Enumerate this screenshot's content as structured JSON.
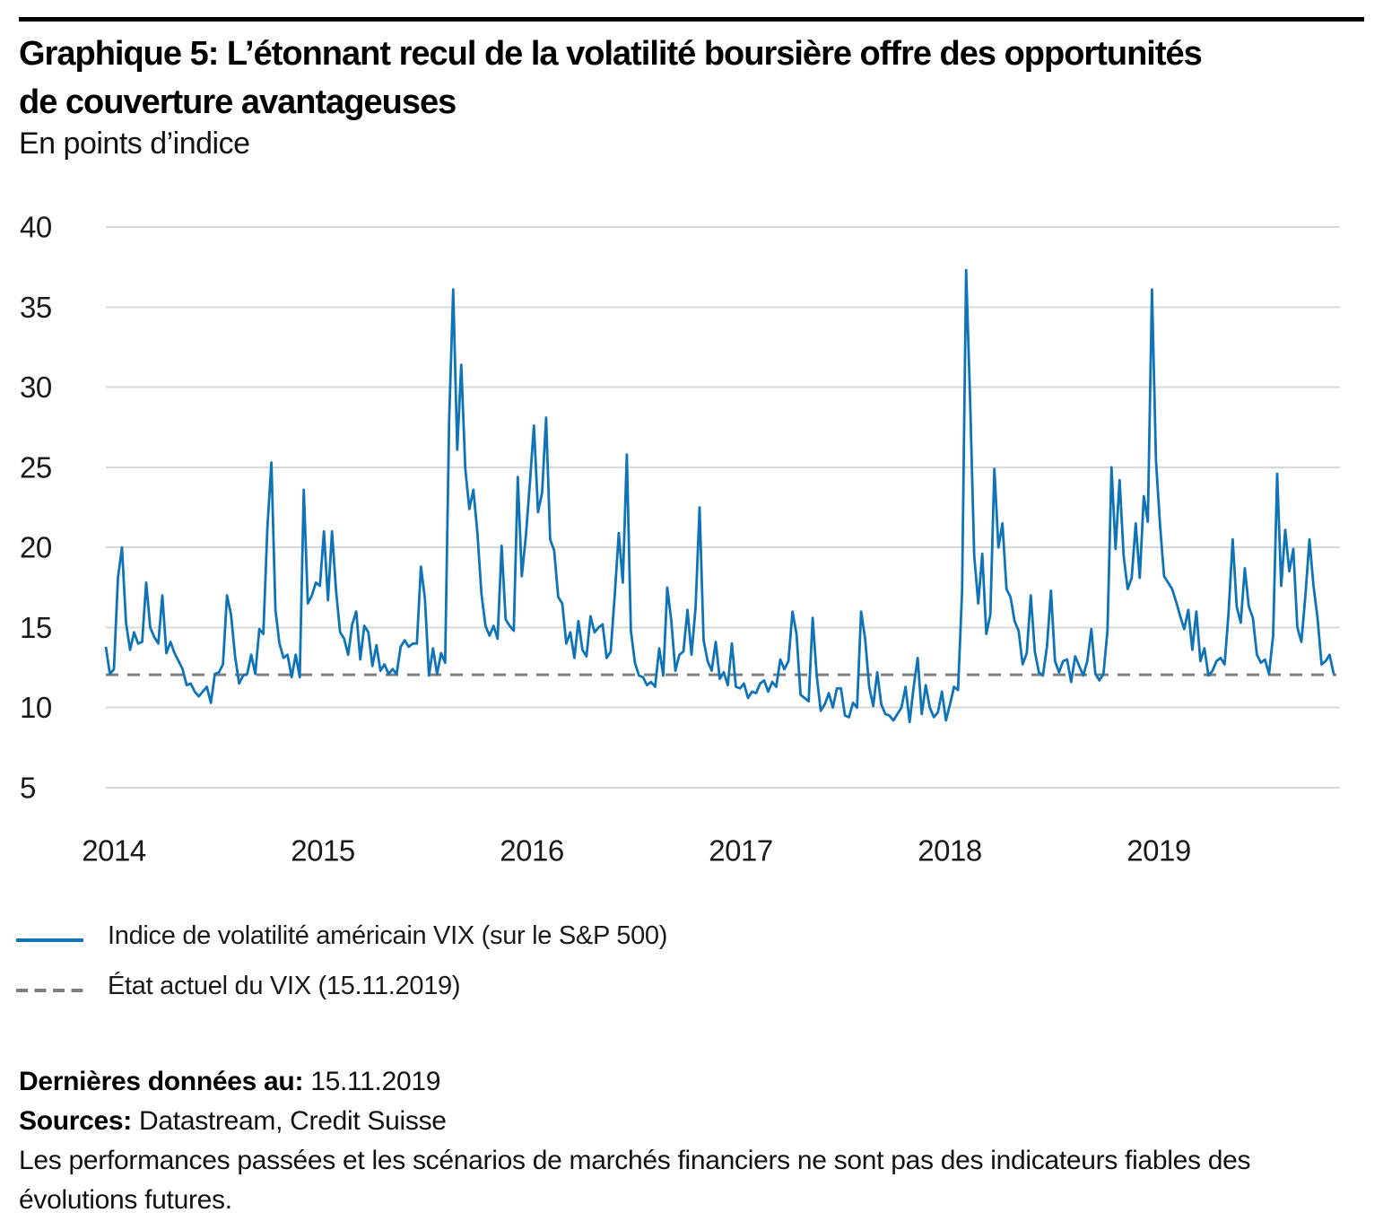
{
  "header": {
    "title": "Graphique 5: L’étonnant recul de la volatilité boursière offre des opportunités de couverture avantageuses",
    "title_line1": "Graphique 5: L’étonnant recul de la volatilité boursière offre des opportunités",
    "title_line2": "de couverture avantageuses",
    "subtitle": "En points d’indice"
  },
  "colors": {
    "accent_blue": "#0f73b8",
    "dash_gray": "#7f7f7f",
    "gridline": "#d8d8d8",
    "axis_text": "#1a1a1a",
    "rule_black": "#000000"
  },
  "chart_data": {
    "type": "line",
    "title": "Graphique 5: L’étonnant recul de la volatilité boursière offre des opportunités de couverture avantageuses",
    "ylabel": "En points d’indice",
    "xlabel": "",
    "ylim": [
      5,
      40
    ],
    "yticks": [
      5,
      10,
      15,
      20,
      25,
      30,
      35,
      40
    ],
    "xticks": [
      "2014",
      "2015",
      "2016",
      "2017",
      "2018",
      "2019"
    ],
    "x_range": [
      "janv. 2014",
      "15.11.2019"
    ],
    "sampling": "approx. weekly VIX closing values, evenly spaced",
    "grid": "horizontal only",
    "legend_position": "below-left",
    "series": [
      {
        "name": "Indice de volatilité américain VIX (sur le S&P 500)",
        "style": "solid",
        "color": "#0f73b8",
        "values": [
          13.8,
          12.1,
          12.4,
          18.1,
          20.0,
          15.3,
          13.6,
          14.7,
          14.0,
          14.1,
          17.8,
          15.0,
          14.4,
          14.0,
          17.0,
          13.4,
          14.1,
          13.4,
          12.9,
          12.4,
          11.4,
          11.5,
          11.0,
          10.7,
          11.0,
          11.3,
          10.3,
          12.1,
          12.2,
          12.7,
          17.0,
          15.8,
          13.2,
          11.5,
          12.0,
          12.1,
          13.3,
          12.1,
          14.9,
          14.6,
          21.2,
          25.3,
          16.1,
          14.0,
          13.1,
          13.3,
          11.9,
          13.3,
          11.9,
          23.6,
          16.5,
          17.0,
          17.8,
          17.6,
          21.0,
          16.7,
          21.0,
          17.3,
          14.7,
          14.3,
          13.3,
          15.2,
          16.0,
          13.0,
          15.1,
          14.7,
          12.6,
          13.9,
          12.3,
          12.7,
          12.1,
          12.4,
          12.1,
          13.8,
          14.2,
          13.8,
          14.0,
          14.0,
          18.8,
          16.8,
          12.0,
          13.7,
          12.1,
          13.4,
          12.8,
          28.0,
          36.1,
          26.1,
          31.4,
          24.9,
          22.4,
          23.6,
          20.9,
          17.1,
          15.1,
          14.5,
          15.1,
          14.3,
          20.1,
          15.5,
          15.1,
          14.8,
          24.4,
          18.2,
          20.7,
          24.0,
          27.6,
          22.2,
          23.4,
          28.1,
          20.5,
          19.8,
          16.9,
          16.5,
          14.0,
          14.7,
          13.1,
          15.4,
          13.6,
          13.2,
          15.7,
          14.7,
          15.0,
          15.2,
          13.1,
          13.5,
          17.0,
          20.9,
          17.8,
          25.8,
          14.8,
          12.8,
          12.0,
          11.9,
          11.4,
          11.6,
          11.3,
          13.7,
          12.0,
          17.5,
          15.4,
          12.3,
          13.3,
          13.5,
          16.1,
          13.3,
          16.2,
          22.5,
          14.2,
          12.9,
          12.3,
          14.1,
          11.8,
          12.2,
          11.4,
          14.0,
          11.3,
          11.2,
          11.5,
          10.6,
          11.0,
          10.9,
          11.5,
          11.7,
          11.0,
          11.6,
          11.3,
          13.0,
          12.4,
          12.9,
          16.0,
          14.6,
          10.8,
          10.6,
          10.4,
          15.6,
          12.0,
          9.8,
          10.2,
          10.9,
          10.0,
          11.2,
          11.2,
          9.5,
          9.4,
          10.3,
          10.0,
          16.0,
          14.3,
          11.3,
          10.1,
          12.2,
          10.2,
          9.6,
          9.5,
          9.2,
          9.6,
          10.0,
          11.3,
          9.1,
          11.3,
          13.1,
          9.6,
          11.4,
          10.0,
          9.4,
          9.7,
          11.0,
          9.2,
          10.2,
          11.3,
          11.1,
          17.3,
          37.3,
          29.1,
          19.5,
          16.5,
          19.6,
          14.6,
          15.8,
          24.9,
          20.0,
          21.5,
          17.4,
          16.9,
          15.4,
          14.8,
          12.7,
          13.4,
          17.0,
          13.5,
          12.2,
          12.0,
          13.8,
          17.3,
          12.9,
          12.2,
          12.9,
          13.0,
          11.6,
          13.2,
          12.6,
          12.0,
          12.9,
          14.9,
          12.1,
          11.7,
          12.1,
          14.8,
          25.0,
          19.9,
          24.2,
          19.5,
          17.4,
          18.1,
          21.5,
          18.1,
          23.2,
          21.6,
          36.1,
          25.4,
          21.4,
          18.2,
          17.8,
          17.4,
          16.6,
          15.7,
          14.9,
          16.1,
          13.6,
          16.0,
          12.9,
          13.7,
          12.0,
          12.3,
          12.9,
          13.1,
          12.7,
          16.0,
          20.5,
          16.3,
          15.3,
          18.7,
          16.3,
          15.6,
          13.3,
          12.8,
          13.0,
          12.1,
          14.5,
          24.6,
          17.6,
          21.1,
          18.5,
          19.9,
          15.0,
          14.1,
          17.0,
          20.5,
          17.6,
          15.6,
          12.7,
          12.9,
          13.3,
          12.1
        ]
      },
      {
        "name": "État actuel du VIX (15.11.2019)",
        "style": "dashed",
        "color": "#7f7f7f",
        "value": 12.05
      }
    ]
  },
  "legend": {
    "items": [
      {
        "label": "Indice de volatilité américain VIX (sur le S&P 500)",
        "swatch": "solid-blue-line"
      },
      {
        "label": "État actuel du VIX (15.11.2019)",
        "swatch": "dashed-gray-line"
      }
    ]
  },
  "footer": {
    "last_data_label": "Dernières données au:",
    "last_data_value": "15.11.2019",
    "sources_label": "Sources:",
    "sources_value": "Datastream, Credit Suisse",
    "disclaimer": "Les performances passées et les scénarios de marchés financiers ne sont pas des indicateurs fiables des évolutions futures."
  }
}
